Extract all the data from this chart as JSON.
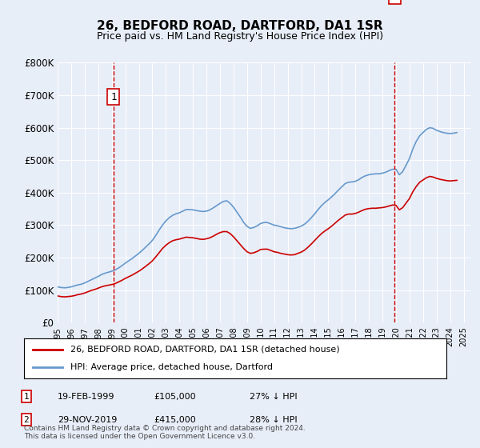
{
  "title": "26, BEDFORD ROAD, DARTFORD, DA1 1SR",
  "subtitle": "Price paid vs. HM Land Registry's House Price Index (HPI)",
  "ylabel": "",
  "xlabel": "",
  "ylim": [
    0,
    800000
  ],
  "yticks": [
    0,
    100000,
    200000,
    300000,
    400000,
    500000,
    600000,
    700000,
    800000
  ],
  "ytick_labels": [
    "£0",
    "£100K",
    "£200K",
    "£300K",
    "£400K",
    "£500K",
    "£600K",
    "£700K",
    "£800K"
  ],
  "background_color": "#e8eef8",
  "plot_bg_color": "#e8eef8",
  "red_line_color": "#cc0000",
  "blue_line_color": "#6699cc",
  "sale1_date_num": 1999.13,
  "sale1_price": 105000,
  "sale1_label": "19-FEB-1999",
  "sale1_price_label": "£105,000",
  "sale1_pct_label": "27% ↓ HPI",
  "sale2_date_num": 2019.91,
  "sale2_price": 415000,
  "sale2_label": "29-NOV-2019",
  "sale2_price_label": "£415,000",
  "sale2_pct_label": "28% ↓ HPI",
  "legend_label1": "26, BEDFORD ROAD, DARTFORD, DA1 1SR (detached house)",
  "legend_label2": "HPI: Average price, detached house, Dartford",
  "footer": "Contains HM Land Registry data © Crown copyright and database right 2024.\nThis data is licensed under the Open Government Licence v3.0.",
  "hpi_x": [
    1995.0,
    1995.25,
    1995.5,
    1995.75,
    1996.0,
    1996.25,
    1996.5,
    1996.75,
    1997.0,
    1997.25,
    1997.5,
    1997.75,
    1998.0,
    1998.25,
    1998.5,
    1998.75,
    1999.0,
    1999.25,
    1999.5,
    1999.75,
    2000.0,
    2000.25,
    2000.5,
    2000.75,
    2001.0,
    2001.25,
    2001.5,
    2001.75,
    2002.0,
    2002.25,
    2002.5,
    2002.75,
    2003.0,
    2003.25,
    2003.5,
    2003.75,
    2004.0,
    2004.25,
    2004.5,
    2004.75,
    2005.0,
    2005.25,
    2005.5,
    2005.75,
    2006.0,
    2006.25,
    2006.5,
    2006.75,
    2007.0,
    2007.25,
    2007.5,
    2007.75,
    2008.0,
    2008.25,
    2008.5,
    2008.75,
    2009.0,
    2009.25,
    2009.5,
    2009.75,
    2010.0,
    2010.25,
    2010.5,
    2010.75,
    2011.0,
    2011.25,
    2011.5,
    2011.75,
    2012.0,
    2012.25,
    2012.5,
    2012.75,
    2013.0,
    2013.25,
    2013.5,
    2013.75,
    2014.0,
    2014.25,
    2014.5,
    2014.75,
    2015.0,
    2015.25,
    2015.5,
    2015.75,
    2016.0,
    2016.25,
    2016.5,
    2016.75,
    2017.0,
    2017.25,
    2017.5,
    2017.75,
    2018.0,
    2018.25,
    2018.5,
    2018.75,
    2019.0,
    2019.25,
    2019.5,
    2019.75,
    2020.0,
    2020.25,
    2020.5,
    2020.75,
    2021.0,
    2021.25,
    2021.5,
    2021.75,
    2022.0,
    2022.25,
    2022.5,
    2022.75,
    2023.0,
    2023.25,
    2023.5,
    2023.75,
    2024.0,
    2024.25,
    2024.5
  ],
  "hpi_y": [
    110000,
    108000,
    107000,
    108000,
    110000,
    113000,
    116000,
    118000,
    122000,
    127000,
    132000,
    137000,
    142000,
    148000,
    152000,
    155000,
    158000,
    162000,
    168000,
    175000,
    183000,
    190000,
    197000,
    205000,
    213000,
    222000,
    232000,
    242000,
    253000,
    268000,
    285000,
    300000,
    313000,
    323000,
    330000,
    335000,
    338000,
    343000,
    348000,
    348000,
    347000,
    345000,
    343000,
    342000,
    343000,
    347000,
    353000,
    360000,
    367000,
    373000,
    375000,
    367000,
    355000,
    340000,
    325000,
    308000,
    296000,
    290000,
    293000,
    298000,
    305000,
    308000,
    308000,
    304000,
    300000,
    298000,
    295000,
    292000,
    290000,
    289000,
    290000,
    293000,
    297000,
    303000,
    312000,
    323000,
    335000,
    348000,
    360000,
    370000,
    378000,
    387000,
    397000,
    408000,
    418000,
    428000,
    432000,
    433000,
    435000,
    440000,
    447000,
    452000,
    455000,
    457000,
    458000,
    458000,
    460000,
    463000,
    468000,
    472000,
    472000,
    455000,
    465000,
    485000,
    505000,
    535000,
    558000,
    575000,
    585000,
    595000,
    600000,
    598000,
    592000,
    588000,
    585000,
    583000,
    582000,
    583000,
    585000
  ],
  "red_x": [
    1995.0,
    1995.25,
    1995.5,
    1995.75,
    1996.0,
    1996.25,
    1996.5,
    1996.75,
    1997.0,
    1997.25,
    1997.5,
    1997.75,
    1998.0,
    1998.25,
    1998.5,
    1998.75,
    1999.0,
    1999.25,
    1999.5,
    1999.75,
    2000.0,
    2000.25,
    2000.5,
    2000.75,
    2001.0,
    2001.25,
    2001.5,
    2001.75,
    2002.0,
    2002.25,
    2002.5,
    2002.75,
    2003.0,
    2003.25,
    2003.5,
    2003.75,
    2004.0,
    2004.25,
    2004.5,
    2004.75,
    2005.0,
    2005.25,
    2005.5,
    2005.75,
    2006.0,
    2006.25,
    2006.5,
    2006.75,
    2007.0,
    2007.25,
    2007.5,
    2007.75,
    2008.0,
    2008.25,
    2008.5,
    2008.75,
    2009.0,
    2009.25,
    2009.5,
    2009.75,
    2010.0,
    2010.25,
    2010.5,
    2010.75,
    2011.0,
    2011.25,
    2011.5,
    2011.75,
    2012.0,
    2012.25,
    2012.5,
    2012.75,
    2013.0,
    2013.25,
    2013.5,
    2013.75,
    2014.0,
    2014.25,
    2014.5,
    2014.75,
    2015.0,
    2015.25,
    2015.5,
    2015.75,
    2016.0,
    2016.25,
    2016.5,
    2016.75,
    2017.0,
    2017.25,
    2017.5,
    2017.75,
    2018.0,
    2018.25,
    2018.5,
    2018.75,
    2019.0,
    2019.25,
    2019.5,
    2019.75,
    2020.0,
    2020.25,
    2020.5,
    2020.75,
    2021.0,
    2021.25,
    2021.5,
    2021.75,
    2022.0,
    2022.25,
    2022.5,
    2022.75,
    2023.0,
    2023.25,
    2023.5,
    2023.75,
    2024.0,
    2024.25,
    2024.5
  ],
  "red_y": [
    82000,
    80000,
    79000,
    80000,
    81000,
    83000,
    86000,
    88000,
    91000,
    95000,
    99000,
    102000,
    106000,
    110000,
    113000,
    115000,
    117000,
    120000,
    125000,
    130000,
    136000,
    141000,
    146000,
    152000,
    158000,
    165000,
    173000,
    181000,
    190000,
    202000,
    215000,
    228000,
    238000,
    246000,
    252000,
    255000,
    257000,
    260000,
    263000,
    262000,
    261000,
    259000,
    257000,
    256000,
    258000,
    261000,
    266000,
    272000,
    277000,
    280000,
    280000,
    274000,
    264000,
    252000,
    240000,
    228000,
    218000,
    213000,
    215000,
    219000,
    225000,
    226000,
    226000,
    222000,
    218000,
    216000,
    213000,
    211000,
    209000,
    208000,
    209000,
    213000,
    217000,
    223000,
    232000,
    242000,
    253000,
    264000,
    274000,
    282000,
    289000,
    297000,
    306000,
    315000,
    323000,
    331000,
    334000,
    334000,
    336000,
    340000,
    345000,
    349000,
    351000,
    352000,
    352000,
    353000,
    354000,
    356000,
    359000,
    362000,
    361000,
    347000,
    354000,
    368000,
    382000,
    403000,
    419000,
    432000,
    439000,
    446000,
    450000,
    448000,
    444000,
    441000,
    439000,
    437000,
    436000,
    437000,
    438000
  ]
}
